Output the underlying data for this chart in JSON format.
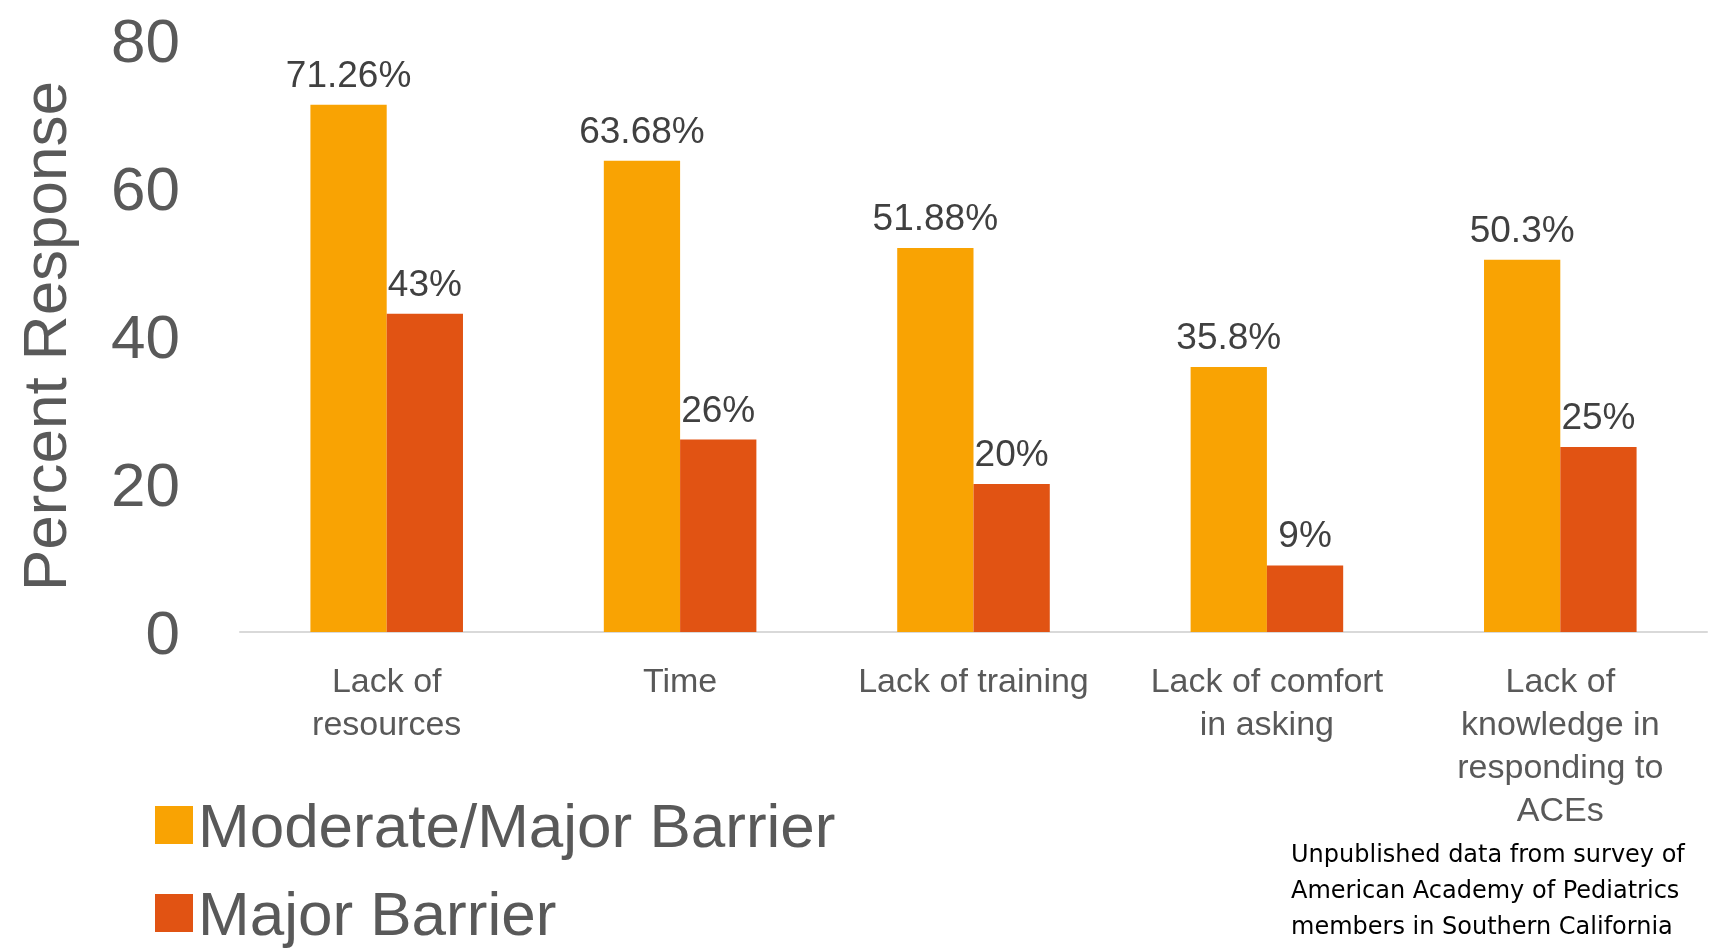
{
  "chart_data": {
    "type": "bar",
    "ylabel": "Percent Response",
    "categories": [
      "Lack of\nresources",
      "Time",
      "Lack of training",
      "Lack of comfort\nin asking",
      "Lack of\nknowledge in\nresponding to\nACEs"
    ],
    "series": [
      {
        "name": "Moderate/Major Barrier",
        "color": "#f9a303",
        "values": [
          71.26,
          63.68,
          51.88,
          35.8,
          50.3
        ],
        "value_labels": [
          "71.26%",
          "63.68%",
          "51.88%",
          "35.8%",
          "50.3%"
        ]
      },
      {
        "name": "Major Barrier",
        "color": "#e15313",
        "values": [
          43,
          26,
          20,
          9,
          25
        ],
        "value_labels": [
          "43%",
          "26%",
          "20%",
          "9%",
          "25%"
        ]
      }
    ],
    "ylim": [
      0,
      80
    ],
    "yticks": [
      0,
      20,
      40,
      60,
      80
    ],
    "grid": false,
    "legend": "bottom left",
    "annotations": [
      "Unpublished data from survey of American Academy of Pediatrics members in Southern California"
    ]
  }
}
